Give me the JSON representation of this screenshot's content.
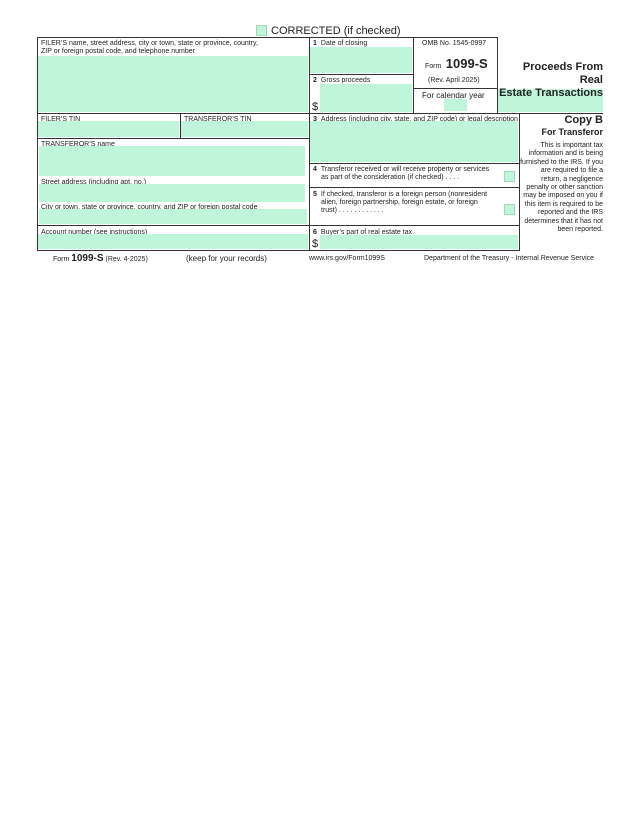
{
  "corrected": {
    "label": "CORRECTED (if checked)"
  },
  "filer": {
    "label_line1": "FILER’S name, street address, city or town, state or province, country,",
    "label_line2": "ZIP or foreign postal code, and telephone number",
    "tin_label": "FILER’S TIN"
  },
  "transferor": {
    "tin_label": "TRANSFEROR’S TIN",
    "name_label": "TRANSFEROR’S name",
    "street_label": "Street address (including apt. no.)",
    "city_label": "City or town, state or province, country, and ZIP or foreign postal code",
    "account_label": "Account number (see instructions)"
  },
  "boxes": {
    "b1": {
      "num": "1",
      "label": "Date of closing"
    },
    "b2": {
      "num": "2",
      "label": "Gross proceeds",
      "prefix": "$"
    },
    "b3": {
      "num": "3",
      "label": "Address (including city, state, and ZIP code) or legal description"
    },
    "b4": {
      "num": "4",
      "line1": "Transferor received or will receive property or services",
      "line2": "as part of the consideration (if checked) .    .    .    ."
    },
    "b5": {
      "num": "5",
      "line1": "If checked, transferor is a foreign person (nonresident",
      "line2": "alien, foreign partnership, foreign estate, or foreign",
      "line3": "trust)   .    .    .    .    .    .    .    .    .    .    .    ."
    },
    "b6": {
      "num": "6",
      "label": "Buyer’s part of real estate tax",
      "prefix": "$"
    }
  },
  "omb": {
    "omb_no": "OMB No. 1545-0997",
    "form_prefix": "Form",
    "form_name": "1099-S",
    "rev": "(Rev. April 2025)",
    "calendar_label": "For calendar year"
  },
  "title": {
    "line1": "Proceeds From Real",
    "line2": "Estate Transactions"
  },
  "copy": {
    "title": "Copy B",
    "subtitle": "For Transferor",
    "notice": "This is important tax information and is being furnished to the IRS. If you are required to file a return, a negligence penalty or other sanction may be imposed on you if this item is required to be reported and the IRS determines that it has not been reported."
  },
  "footer": {
    "form_prefix": "Form",
    "form_name": "1099-S",
    "rev": "(Rev. 4-2025)",
    "keep": "(keep for your records)",
    "url": "www.irs.gov/Form1099S",
    "dept": "Department of the Treasury - Internal Revenue Service"
  },
  "colors": {
    "field": "#bff6da"
  }
}
